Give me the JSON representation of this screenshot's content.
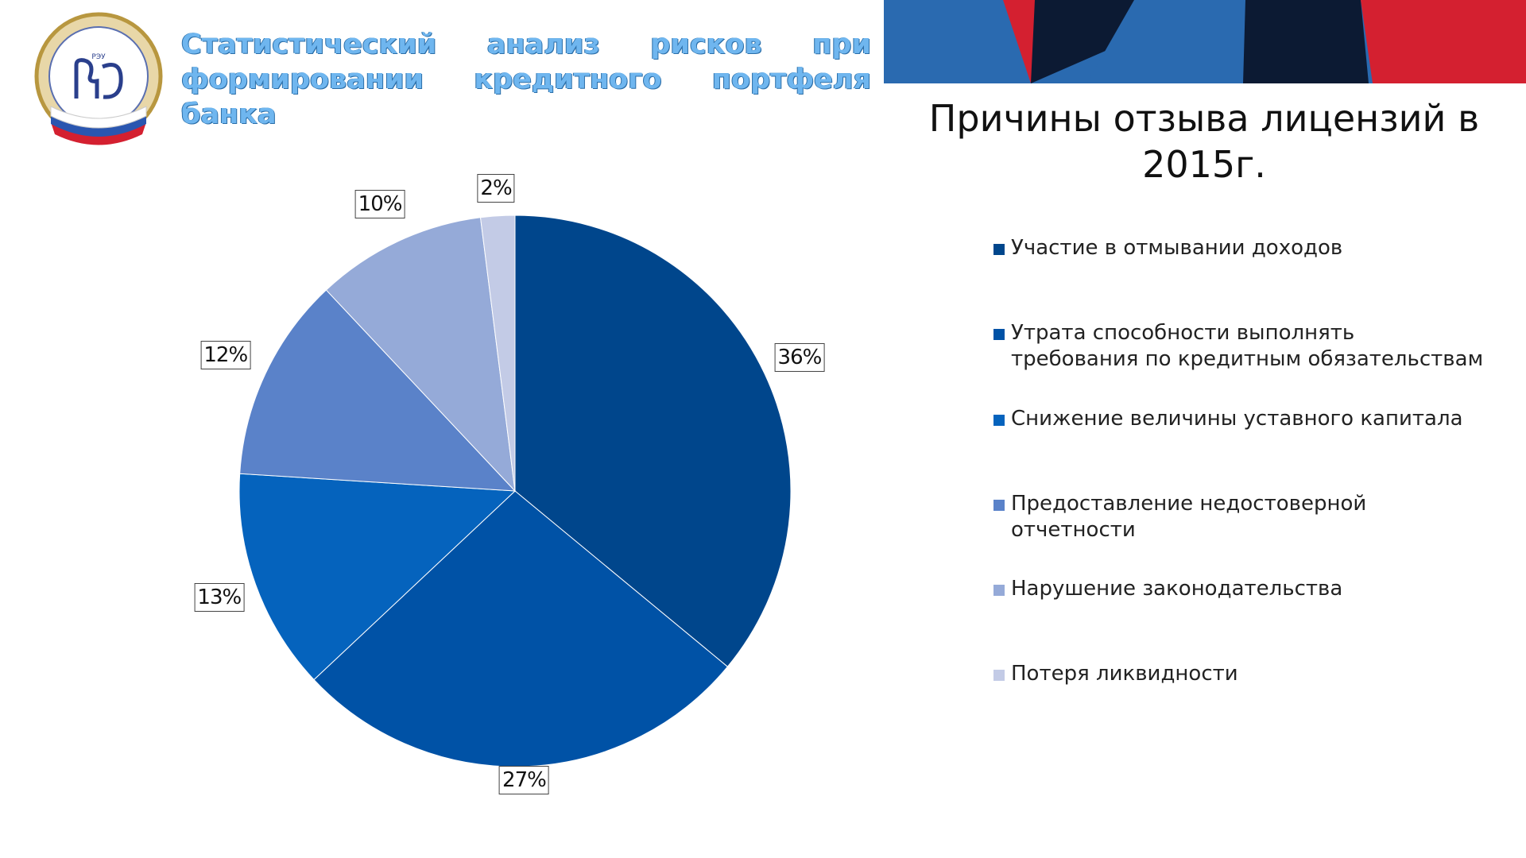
{
  "header": {
    "title_line1": "Статистический анализ рисков при",
    "title_line2": "формировании кредитного портфеля банка",
    "logo_icon": "university-emblem-icon"
  },
  "colors": {
    "title_fill": "#6fb6ef",
    "banner_blue": "#2a6ab0",
    "banner_dark": "#0c1a33",
    "banner_red": "#d42030"
  },
  "chart_data": {
    "type": "pie",
    "title": "Причины отзыва лицензий в 2015г.",
    "categories": [
      "Участие в отмывании доходов",
      "Утрата способности выполнять требования по кредитным обязательствам",
      "Снижение величины уставного капитала",
      "Предоставление недостоверной отчетности",
      "Нарушение законодательства",
      "Потеря ликвидности"
    ],
    "values": [
      36,
      27,
      13,
      12,
      10,
      2
    ],
    "value_labels": [
      "36%",
      "27%",
      "13%",
      "12%",
      "10%",
      "2%"
    ],
    "colors": [
      "#00468c",
      "#0052a6",
      "#0563bd",
      "#5a82c9",
      "#95aad8",
      "#c3cbe6"
    ],
    "legend_position": "right",
    "start_angle": "12 o'clock, clockwise"
  }
}
